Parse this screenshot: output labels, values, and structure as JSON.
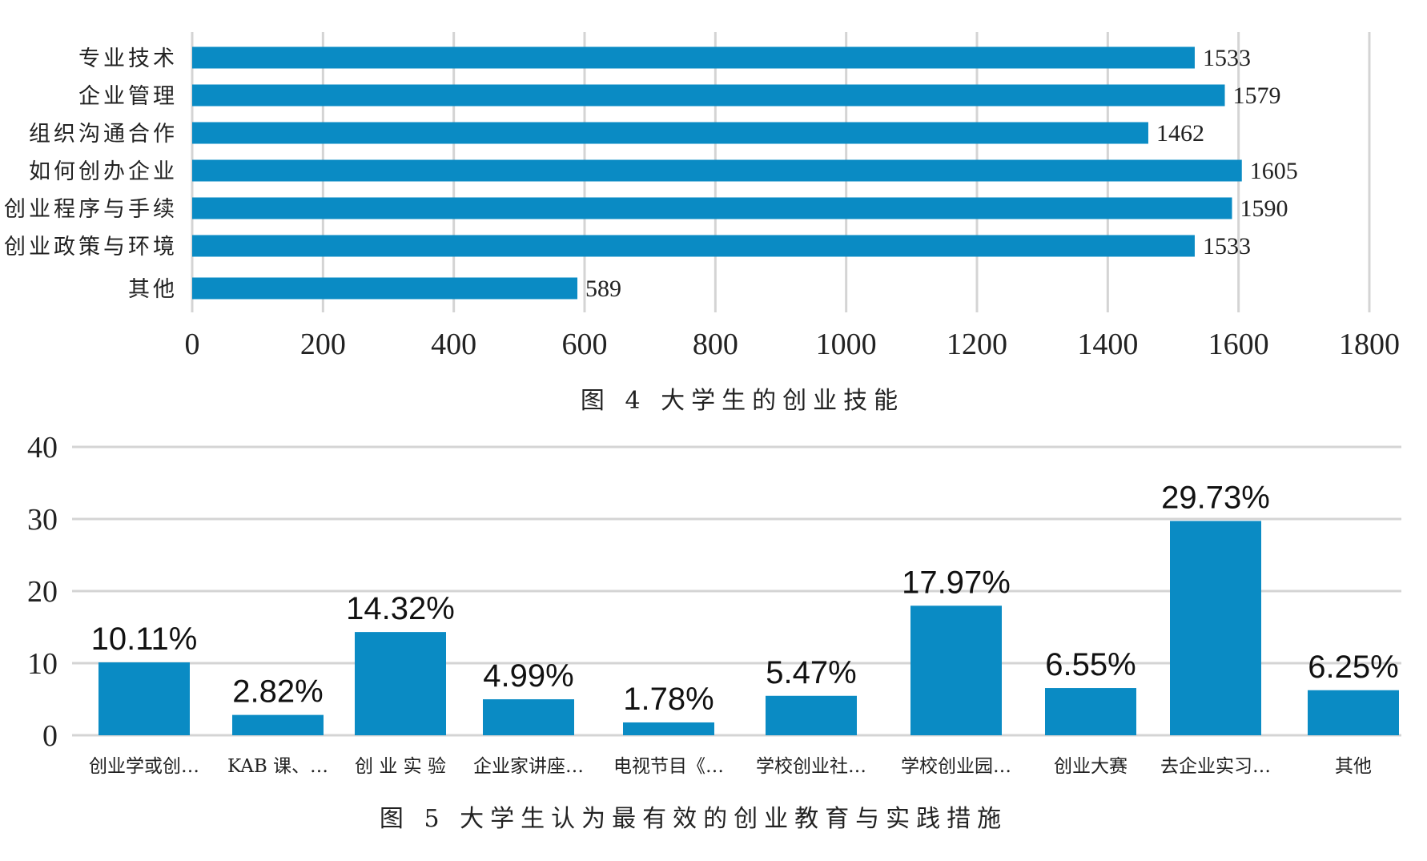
{
  "chart_data": [
    {
      "type": "bar",
      "orientation": "horizontal",
      "title": "图 4 大学生的创业技能",
      "categories": [
        "专业技术",
        "企业管理",
        "组织沟通合作",
        "如何创办企业",
        "创业程序与手续",
        "创业政策与环境",
        "其他"
      ],
      "values": [
        1533,
        1579,
        1462,
        1605,
        1590,
        1533,
        589
      ],
      "value_labels": [
        "1533",
        "1579",
        "1462",
        "1605",
        "1590",
        "1533",
        "589"
      ],
      "xlim": [
        0,
        1800
      ],
      "ticks": [
        "0",
        "200",
        "400",
        "600",
        "800",
        "1000",
        "1200",
        "1400",
        "1600",
        "1800"
      ],
      "tick_values": [
        0,
        200,
        400,
        600,
        800,
        1000,
        1200,
        1400,
        1600,
        1800
      ],
      "grid": "vertical",
      "color": "#0a8bc4"
    },
    {
      "type": "bar",
      "orientation": "vertical",
      "title": "图 5 大学生认为最有效的创业教育与实践措施",
      "categories": [
        "创业学或创…",
        "KAB 课、…",
        "创 业 实 验",
        "企业家讲座…",
        "电视节目《…",
        "学校创业社…",
        "学校创业园…",
        "创业大赛",
        "去企业实习…",
        "其他"
      ],
      "values": [
        10.11,
        2.82,
        14.32,
        4.99,
        1.78,
        5.47,
        17.97,
        6.55,
        29.73,
        6.25
      ],
      "value_labels": [
        "10.11%",
        "2.82%",
        "14.32%",
        "4.99%",
        "1.78%",
        "5.47%",
        "17.97%",
        "6.55%",
        "29.73%",
        "6.25%"
      ],
      "ylim": [
        0,
        40
      ],
      "ticks": [
        "0",
        "10",
        "20",
        "30",
        "40"
      ],
      "tick_values": [
        0,
        10,
        20,
        30,
        40
      ],
      "grid": "horizontal",
      "color": "#0a8bc4"
    }
  ]
}
